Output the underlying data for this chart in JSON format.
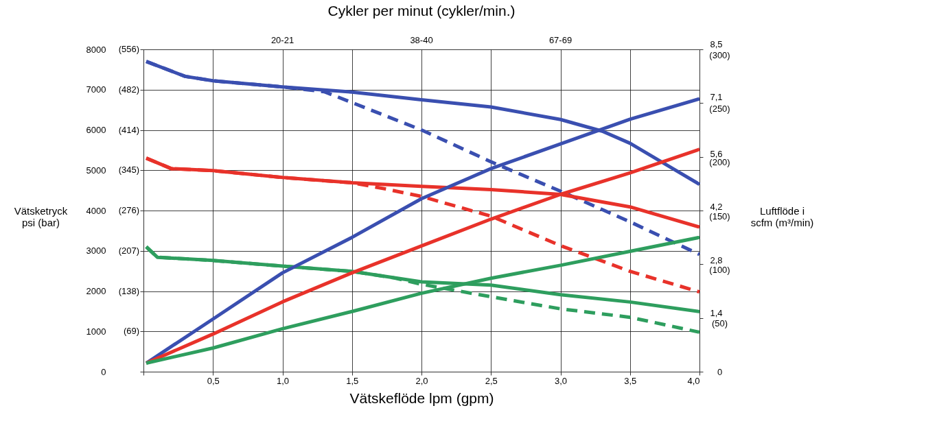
{
  "chart_data": {
    "type": "line",
    "title": "Cykler per minut (cykler/min.)",
    "annotations": [
      "20-21",
      "38-40",
      "67-69",
      "(69)",
      "(138)",
      "(207)",
      "(276)",
      "(345)",
      "(414)",
      "(482)",
      "(556)"
    ],
    "xlabel": "Vätskeflöde lpm (gpm)",
    "ylabel": "Vätsketryck psi (bar)",
    "y2label": "Luftflöde i scfm (m³/min)",
    "xlim": [
      0,
      4.0
    ],
    "xticks": [
      {
        "value": 0,
        "label": null
      },
      {
        "value": 0.5,
        "label": "0,5"
      },
      {
        "value": 1.0,
        "label": "1,0"
      },
      {
        "value": 1.5,
        "label": "1,5"
      },
      {
        "value": 2.0,
        "label": "2,0"
      },
      {
        "value": 2.5,
        "label": "2,5"
      },
      {
        "value": 3.0,
        "label": "3,0"
      },
      {
        "value": 3.5,
        "label": "3,5"
      },
      {
        "value": 4.0,
        "label": "4,0"
      }
    ],
    "ylim": [
      0,
      8000
    ],
    "yticks": [
      0,
      1000,
      2000,
      3000,
      4000,
      5000,
      6000,
      7000,
      8000
    ],
    "y2lim": [
      0,
      300
    ],
    "y2ticks": [
      0,
      {
        "value": 50,
        "label": "(50)"
      },
      {
        "value": 100,
        "label": "(100)"
      },
      {
        "value": 150,
        "label": "(150)"
      },
      {
        "value": 200,
        "label": "(200)"
      },
      {
        "value": 250,
        "label": "(250)"
      },
      {
        "value": 300,
        "label": "(300)"
      }
    ],
    "y3lim": [
      0,
      8.5
    ],
    "y3ticks": [
      {
        "value": 1.4,
        "label": "1,4"
      },
      {
        "value": 2.8,
        "label": "2,8"
      },
      {
        "value": 4.2,
        "label": "4,2"
      },
      {
        "value": 5.6,
        "label": "5,6"
      },
      {
        "value": 7.1,
        "label": "7,1"
      },
      {
        "value": 8.5,
        "label": "8,5"
      }
    ],
    "grid": true,
    "marker": "none",
    "series": [
      {
        "color": "#3a4fb0",
        "line_style": "solid",
        "x": [
          0.02,
          0.3,
          0.5,
          1.0,
          1.5,
          2.0,
          2.5,
          3.0,
          3.3,
          3.5,
          3.75,
          4.0
        ],
        "values": [
          7700,
          7330,
          7220,
          7070,
          6940,
          6750,
          6570,
          6260,
          5970,
          5670,
          5160,
          4650
        ]
      },
      {
        "color": "#3a4fb0",
        "line_style": "dashed",
        "x": [
          0.02,
          0.3,
          0.5,
          1.0,
          1.3,
          1.5,
          2.0,
          2.5,
          3.0,
          3.5,
          4.0
        ],
        "values": [
          7700,
          7330,
          7220,
          7070,
          6950,
          6680,
          6000,
          5210,
          4480,
          3720,
          2910
        ]
      },
      {
        "color": "#3a4fb0",
        "line_style": "solid",
        "axis": "y2",
        "x": [
          0.02,
          0.5,
          1.0,
          1.5,
          2.0,
          2.5,
          3.0,
          3.5,
          4.0
        ],
        "values": [
          8,
          49,
          92,
          125,
          161,
          189,
          212,
          235,
          254
        ]
      },
      {
        "color": "#e8322a",
        "line_style": "solid",
        "x": [
          0.02,
          0.2,
          0.5,
          1.0,
          1.5,
          2.0,
          2.5,
          3.0,
          3.5,
          4.0
        ],
        "values": [
          5300,
          5040,
          4990,
          4820,
          4690,
          4600,
          4520,
          4400,
          4090,
          3590
        ]
      },
      {
        "color": "#e8322a",
        "line_style": "dashed",
        "x": [
          0.02,
          0.2,
          0.5,
          1.0,
          1.5,
          1.75,
          2.0,
          2.5,
          3.0,
          3.5,
          4.0
        ],
        "values": [
          5300,
          5040,
          4990,
          4820,
          4690,
          4530,
          4350,
          3860,
          3130,
          2490,
          1980
        ]
      },
      {
        "color": "#e8322a",
        "line_style": "solid",
        "axis": "y2",
        "x": [
          0.02,
          0.5,
          1.0,
          1.5,
          2.0,
          2.5,
          3.0,
          3.5,
          4.0
        ],
        "values": [
          8,
          35,
          65,
          92,
          117,
          142,
          165,
          185,
          207
        ]
      },
      {
        "color": "#2e9e5e",
        "line_style": "solid",
        "x": [
          0.02,
          0.1,
          0.5,
          1.0,
          1.5,
          2.0,
          2.5,
          3.0,
          3.5,
          4.0
        ],
        "values": [
          3100,
          2840,
          2760,
          2620,
          2490,
          2230,
          2150,
          1910,
          1730,
          1490
        ]
      },
      {
        "color": "#2e9e5e",
        "line_style": "dashed",
        "x": [
          0.02,
          0.1,
          0.5,
          1.0,
          1.5,
          1.8,
          2.0,
          2.5,
          3.0,
          3.5,
          4.0
        ],
        "values": [
          3100,
          2840,
          2760,
          2620,
          2490,
          2330,
          2170,
          1860,
          1560,
          1350,
          980
        ]
      },
      {
        "color": "#2e9e5e",
        "line_style": "solid",
        "axis": "y2",
        "x": [
          0.02,
          0.5,
          1.0,
          1.5,
          2.0,
          2.5,
          3.0,
          3.5,
          4.0
        ],
        "values": [
          8,
          22,
          40,
          56,
          73,
          87,
          99,
          112,
          125
        ]
      }
    ]
  }
}
